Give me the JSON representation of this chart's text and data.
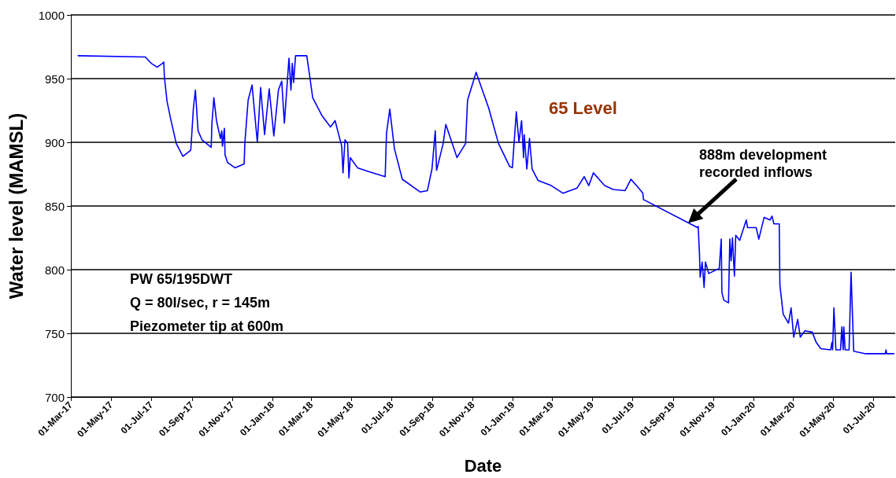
{
  "chart_data": {
    "type": "line",
    "xlabel": "Date",
    "ylabel": "Water level (MAMSL)",
    "x": [
      "2017-03-12",
      "2017-06-22",
      "2017-07-01",
      "2017-07-10",
      "2017-07-18",
      "2017-07-20",
      "2017-07-21",
      "2017-07-25",
      "2017-07-31",
      "2017-08-08",
      "2017-08-18",
      "2017-08-28",
      "2017-08-30",
      "2017-09-03",
      "2017-09-06",
      "2017-09-10",
      "2017-09-16",
      "2017-09-30",
      "2017-10-01",
      "2017-10-04",
      "2017-10-08",
      "2017-10-14",
      "2017-10-16",
      "2017-10-17",
      "2017-10-20",
      "2017-10-21",
      "2017-10-25",
      "2017-11-05",
      "2017-11-19",
      "2017-11-20",
      "2017-11-25",
      "2017-12-01",
      "2017-12-09",
      "2017-12-14",
      "2017-12-20",
      "2017-12-27",
      "2018-01-03",
      "2018-01-10",
      "2018-01-15",
      "2018-01-19",
      "2018-01-26",
      "2018-01-29",
      "2018-01-31",
      "2018-02-02",
      "2018-02-05",
      "2018-02-22",
      "2018-02-27",
      "2018-03-03",
      "2018-03-17",
      "2018-03-30",
      "2018-04-06",
      "2018-04-16",
      "2018-04-18",
      "2018-04-21",
      "2018-04-25",
      "2018-04-27",
      "2018-04-29",
      "2018-05-10",
      "2018-05-27",
      "2018-06-21",
      "2018-06-23",
      "2018-06-28",
      "2018-07-05",
      "2018-07-17",
      "2018-08-13",
      "2018-08-24",
      "2018-08-31",
      "2018-09-05",
      "2018-09-07",
      "2018-09-17",
      "2018-09-21",
      "2018-10-08",
      "2018-10-21",
      "2018-10-24",
      "2018-11-06",
      "2018-11-25",
      "2018-12-10",
      "2018-12-27",
      "2018-12-31",
      "2019-01-06",
      "2019-01-10",
      "2019-01-14",
      "2019-01-17",
      "2019-01-18",
      "2019-01-22",
      "2019-01-26",
      "2019-01-30",
      "2019-02-08",
      "2019-02-28",
      "2019-03-18",
      "2019-04-08",
      "2019-04-19",
      "2019-04-26",
      "2019-05-03",
      "2019-05-20",
      "2019-06-02",
      "2019-06-20",
      "2019-06-29",
      "2019-07-14",
      "2019-07-17",
      "2019-07-18",
      "2019-10-08",
      "2019-10-09",
      "2019-10-11",
      "2019-10-12",
      "2019-10-15",
      "2019-10-18",
      "2019-10-20",
      "2019-10-25",
      "2019-11-10",
      "2019-11-13",
      "2019-11-14",
      "2019-11-17",
      "2019-11-24",
      "2019-11-26",
      "2019-11-28",
      "2019-11-30",
      "2019-12-03",
      "2019-12-05",
      "2019-12-11",
      "2019-12-21",
      "2019-12-23",
      "2020-01-05",
      "2020-01-09",
      "2020-01-17",
      "2020-01-26",
      "2020-01-29",
      "2020-02-01",
      "2020-02-09",
      "2020-02-10",
      "2020-02-15",
      "2020-02-23",
      "2020-02-27",
      "2020-03-02",
      "2020-03-08",
      "2020-03-12",
      "2020-03-19",
      "2020-03-30",
      "2020-04-05",
      "2020-04-12",
      "2020-04-27",
      "2020-04-29",
      "2020-04-30",
      "2020-05-02",
      "2020-05-05",
      "2020-05-12",
      "2020-05-14",
      "2020-05-16",
      "2020-05-17",
      "2020-05-19",
      "2020-05-25",
      "2020-05-28",
      "2020-06-01",
      "2020-06-19",
      "2020-07-19",
      "2020-07-20",
      "2020-07-21",
      "2020-08-01"
    ],
    "series": [
      {
        "color": "#0000ff",
        "values": [
          968,
          967,
          962,
          959,
          962,
          963,
          951,
          932,
          917,
          899,
          889,
          893,
          894,
          927,
          941,
          909,
          902,
          896,
          914,
          935,
          917,
          903,
          909,
          897,
          911,
          890,
          884,
          880,
          883,
          899,
          933,
          945,
          900,
          943,
          906,
          942,
          905,
          941,
          948,
          915,
          966,
          941,
          962,
          947,
          968,
          968,
          950,
          935,
          921,
          912,
          917,
          897,
          876,
          902,
          899,
          872,
          888,
          880,
          877,
          873,
          907,
          926,
          895,
          871,
          861,
          862,
          879,
          909,
          878,
          899,
          914,
          888,
          899,
          933,
          955,
          927,
          899,
          881,
          880,
          924,
          900,
          917,
          888,
          906,
          879,
          903,
          879,
          870,
          866,
          860,
          864,
          873,
          866,
          876,
          866,
          863,
          862,
          871,
          862,
          860,
          855,
          833,
          834,
          812,
          794,
          806,
          786,
          806,
          797,
          801,
          824,
          782,
          776,
          774,
          824,
          807,
          825,
          795,
          827,
          823,
          839,
          833,
          833,
          824,
          841,
          839,
          842,
          836,
          836,
          788,
          765,
          758,
          770,
          747,
          761,
          747,
          752,
          751,
          743,
          738,
          737,
          743,
          737,
          770,
          737,
          737,
          755,
          737,
          755,
          737,
          737,
          798,
          736,
          734,
          734,
          737,
          734,
          734
        ]
      }
    ],
    "xlim": [
      "2017-03-01",
      "2020-08-03"
    ],
    "xticks": [
      {
        "value": "2017-03-01",
        "label": "01-Mar-17"
      },
      {
        "value": "2017-05-01",
        "label": "01-May-17"
      },
      {
        "value": "2017-07-01",
        "label": "01-Jul-17"
      },
      {
        "value": "2017-09-01",
        "label": "01-Sep-17"
      },
      {
        "value": "2017-11-01",
        "label": "01-Nov-17"
      },
      {
        "value": "2018-01-01",
        "label": "01-Jan-18"
      },
      {
        "value": "2018-03-01",
        "label": "01-Mar-18"
      },
      {
        "value": "2018-05-01",
        "label": "01-May-18"
      },
      {
        "value": "2018-07-01",
        "label": "01-Jul-18"
      },
      {
        "value": "2018-09-01",
        "label": "01-Sep-18"
      },
      {
        "value": "2018-11-01",
        "label": "01-Nov-18"
      },
      {
        "value": "2019-01-01",
        "label": "01-Jan-19"
      },
      {
        "value": "2019-03-01",
        "label": "01-Mar-19"
      },
      {
        "value": "2019-05-01",
        "label": "01-May-19"
      },
      {
        "value": "2019-07-01",
        "label": "01-Jul-19"
      },
      {
        "value": "2019-09-01",
        "label": "01-Sep-19"
      },
      {
        "value": "2019-11-01",
        "label": "01-Nov-19"
      },
      {
        "value": "2020-01-01",
        "label": "01-Jan-20"
      },
      {
        "value": "2020-03-01",
        "label": "01-Mar-20"
      },
      {
        "value": "2020-05-01",
        "label": "01-May-20"
      },
      {
        "value": "2020-07-01",
        "label": "01-Jul-20"
      }
    ],
    "ylim": [
      700,
      1000
    ],
    "yticks": [
      700,
      750,
      800,
      850,
      900,
      950,
      1000
    ],
    "grid": "y",
    "marker": "none",
    "line_style": "solid",
    "annotations": [
      "65 Level",
      "888m development recorded inflows",
      "PW 65/195DWT",
      "Q = 80l/sec, r = 145m",
      "Piezometer tip at 600m"
    ]
  }
}
